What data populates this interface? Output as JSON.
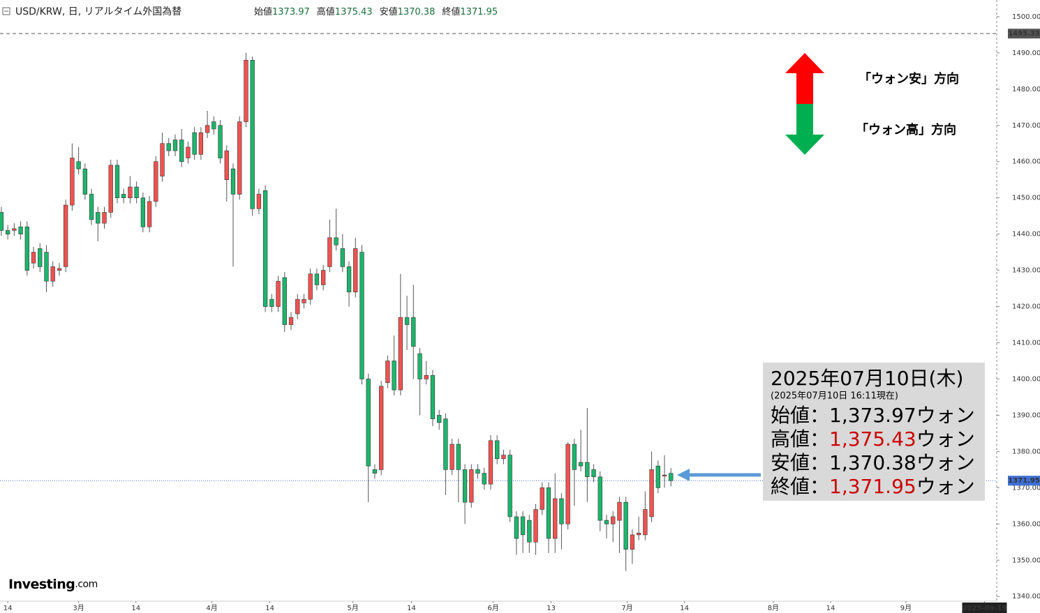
{
  "chart_data": {
    "type": "candlestick",
    "header": {
      "title": "USD/KRW, 日, リアルタイム外国為替",
      "items": [
        {
          "label": "始値",
          "value": "1373.97"
        },
        {
          "label": "高値",
          "value": "1375.43"
        },
        {
          "label": "安値",
          "value": "1370.38"
        },
        {
          "label": "終値",
          "value": "1371.95"
        }
      ]
    },
    "open": [
      1446,
      1441,
      1441,
      1442,
      1442,
      1432,
      1436,
      1435,
      1427,
      1430,
      1431,
      1448,
      1460,
      1458,
      1451,
      1446,
      1443,
      1446,
      1459,
      1451,
      1450,
      1453,
      1450,
      1442,
      1449,
      1456,
      1465,
      1466,
      1466,
      1461,
      1468,
      1462,
      1468,
      1471,
      1470,
      1455,
      1458,
      1451,
      1471,
      1488,
      1447,
      1452,
      1422,
      1420,
      1428,
      1415,
      1418,
      1421,
      1422,
      1429,
      1426,
      1431,
      1439,
      1436,
      1431,
      1424,
      1435,
      1400,
      1375,
      1375,
      1399,
      1405,
      1397,
      1417,
      1417,
      1407,
      1400,
      1401,
      1390,
      1389,
      1375,
      1382,
      1375,
      1366,
      1375,
      1374,
      1371,
      1383,
      1378,
      1379,
      1362,
      1362,
      1361,
      1355,
      1364,
      1370,
      1356,
      1367,
      1360,
      1382,
      1377,
      1377,
      1375,
      1373,
      1361,
      1360,
      1361,
      1366,
      1353,
      1357,
      1357,
      1362,
      1376,
      1373.2,
      1373.97
    ],
    "high": [
      1447.5,
      1442.5,
      1443,
      1443.5,
      1443.5,
      1436.5,
      1437.5,
      1437,
      1432.5,
      1432,
      1449.5,
      1465,
      1464,
      1459.5,
      1452.5,
      1447.5,
      1447.5,
      1460.5,
      1460.5,
      1452.5,
      1456,
      1454.5,
      1451.5,
      1450.5,
      1461.5,
      1468,
      1466.5,
      1467.5,
      1469,
      1465.5,
      1469.5,
      1469.5,
      1474,
      1472.5,
      1471.5,
      1464.5,
      1459.5,
      1472.5,
      1490,
      1489,
      1452.5,
      1453.5,
      1423.5,
      1428.5,
      1429.5,
      1418.5,
      1423.5,
      1423.5,
      1430.5,
      1430.5,
      1431.5,
      1444,
      1447,
      1440,
      1432.5,
      1439,
      1437,
      1401.5,
      1376.5,
      1399.5,
      1406.5,
      1412,
      1429,
      1423,
      1426,
      1408.5,
      1405,
      1402.5,
      1391.5,
      1390.5,
      1383.5,
      1383.5,
      1376.5,
      1376.5,
      1376.5,
      1375.5,
      1384.5,
      1384.5,
      1380.5,
      1380.5,
      1363.5,
      1363.5,
      1362.5,
      1365.5,
      1371.5,
      1371.5,
      1374,
      1368.5,
      1382.5,
      1383.5,
      1386,
      1392,
      1376.5,
      1374.5,
      1362.5,
      1363.5,
      1367.5,
      1367.5,
      1358.5,
      1362,
      1369,
      1380,
      1377.5,
      1379,
      1375.43
    ],
    "low": [
      1439.5,
      1438.5,
      1439.5,
      1438.5,
      1428.5,
      1430.5,
      1429.5,
      1424,
      1425.5,
      1428.5,
      1429.5,
      1446.5,
      1456.5,
      1449.5,
      1442.5,
      1438,
      1441.5,
      1444.5,
      1448.5,
      1448.5,
      1448.5,
      1448.5,
      1440.5,
      1440.5,
      1447.5,
      1454.5,
      1461.5,
      1461.5,
      1458.5,
      1459.5,
      1460.5,
      1460.5,
      1466.5,
      1467.5,
      1459.5,
      1449,
      1431,
      1449.5,
      1469.5,
      1445,
      1445.5,
      1418.5,
      1418.5,
      1418.5,
      1413,
      1413.5,
      1416.5,
      1419.5,
      1420.5,
      1424.5,
      1424.5,
      1429.5,
      1435.5,
      1429.5,
      1420,
      1422.5,
      1398.5,
      1366,
      1372.5,
      1373.5,
      1397.5,
      1395.5,
      1395.5,
      1408,
      1400,
      1390,
      1398.5,
      1387,
      1386,
      1368,
      1373.5,
      1366,
      1360,
      1364.5,
      1372.5,
      1369.5,
      1369.5,
      1376.5,
      1376.5,
      1360.5,
      1351.5,
      1352,
      1352,
      1351.5,
      1362.5,
      1352,
      1352,
      1353,
      1358.5,
      1365,
      1374.5,
      1366,
      1371.5,
      1358,
      1356,
      1355,
      1352,
      1347,
      1349,
      1355.5,
      1355.5,
      1360.5,
      1368.5,
      1370,
      1370.38
    ],
    "close": [
      1441,
      1440,
      1441.5,
      1440,
      1430,
      1435,
      1431,
      1427,
      1431,
      1430.5,
      1448,
      1461,
      1458,
      1451,
      1444,
      1443,
      1446,
      1459,
      1450,
      1450,
      1453,
      1450,
      1442,
      1449,
      1460,
      1465,
      1463,
      1463,
      1460,
      1464,
      1462,
      1468,
      1470,
      1469,
      1461,
      1463,
      1451,
      1471,
      1488,
      1447,
      1451,
      1420,
      1420,
      1427,
      1415,
      1417,
      1422,
      1422,
      1429,
      1426,
      1430,
      1439,
      1437,
      1431,
      1424,
      1436,
      1400,
      1376,
      1374,
      1398,
      1405,
      1397,
      1417,
      1415,
      1409,
      1400,
      1401,
      1389,
      1388,
      1375,
      1382,
      1375,
      1366,
      1375,
      1374,
      1371,
      1383,
      1378,
      1379,
      1362,
      1356,
      1357,
      1355,
      1364,
      1370,
      1356,
      1367,
      1360,
      1382,
      1375,
      1376,
      1373,
      1373,
      1361,
      1360,
      1362,
      1366,
      1353,
      1357,
      1357.5,
      1364,
      1375,
      1370,
      1373.5,
      1371.95
    ],
    "up_color": "#ef5350",
    "down_color": "#1db56c",
    "xlim": [
      -0.1,
      154.6
    ],
    "xticks": [
      {
        "value": 1.0,
        "label": "14"
      },
      {
        "value": 12.0,
        "label": "3月"
      },
      {
        "value": 20.9,
        "label": "14"
      },
      {
        "value": 32.7,
        "label": "4月"
      },
      {
        "value": 41.7,
        "label": "14"
      },
      {
        "value": 54.6,
        "label": "5月"
      },
      {
        "value": 63.7,
        "label": "14"
      },
      {
        "value": 76.4,
        "label": "6月"
      },
      {
        "value": 85.4,
        "label": "13"
      },
      {
        "value": 97.2,
        "label": "7月"
      },
      {
        "value": 106.1,
        "label": "14"
      },
      {
        "value": 119.9,
        "label": "8月"
      },
      {
        "value": 128.8,
        "label": "14"
      },
      {
        "value": 140.5,
        "label": "9月"
      },
      {
        "value": 152.7,
        "label": "2025-09-19"
      }
    ],
    "ylim": [
      1338.7,
      1504.6
    ],
    "yticks": [
      {
        "value": 1340,
        "label": "1340.00"
      },
      {
        "value": 1350,
        "label": "1350.00"
      },
      {
        "value": 1360,
        "label": "1360.00"
      },
      {
        "value": 1370,
        "label": "1370.00"
      },
      {
        "value": 1380,
        "label": "1380.00"
      },
      {
        "value": 1390,
        "label": "1390.00"
      },
      {
        "value": 1400,
        "label": "1400.00"
      },
      {
        "value": 1410,
        "label": "1410.00"
      },
      {
        "value": 1420,
        "label": "1420.00"
      },
      {
        "value": 1430,
        "label": "1430.00"
      },
      {
        "value": 1440,
        "label": "1440.00"
      },
      {
        "value": 1450,
        "label": "1450.00"
      },
      {
        "value": 1460,
        "label": "1460.00"
      },
      {
        "value": 1470,
        "label": "1470.00"
      },
      {
        "value": 1480,
        "label": "1480.00"
      },
      {
        "value": 1490,
        "label": "1490.00"
      },
      {
        "value": 1500,
        "label": "1500.00"
      }
    ],
    "hlines": [
      {
        "value": 1495.33,
        "color": "#555555",
        "style": "dashed"
      },
      {
        "value": 1371.95,
        "color": "#3d6fd6",
        "style": "dotted"
      }
    ],
    "annotations": {
      "weak": "「ウォン安」方向",
      "strong": "「ウォン高」方向"
    },
    "info_box": {
      "date": "2025年07月10日(木)",
      "asof": "(2025年07月10日 16:11現在)",
      "rows": [
        {
          "label": "始値：",
          "value": "1,373.97",
          "unit": "ウォン",
          "color": "#000000"
        },
        {
          "label": "高値：",
          "value": "1,375.43",
          "unit": "ウォン",
          "color": "#cc0000"
        },
        {
          "label": "安値：",
          "value": "1,370.38",
          "unit": "ウォン",
          "color": "#000000"
        },
        {
          "label": "終値：",
          "value": "1,371.95",
          "unit": "ウォン",
          "color": "#cc0000"
        }
      ]
    },
    "logo": {
      "name": "Investing",
      "suffix": ".com"
    }
  }
}
